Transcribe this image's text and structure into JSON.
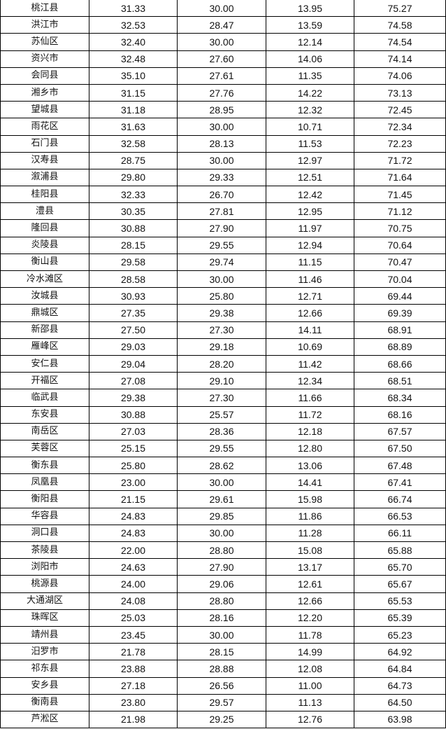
{
  "table": {
    "rows": [
      [
        "桃江县",
        "31.33",
        "30.00",
        "13.95",
        "75.27"
      ],
      [
        "洪江市",
        "32.53",
        "28.47",
        "13.59",
        "74.58"
      ],
      [
        "苏仙区",
        "32.40",
        "30.00",
        "12.14",
        "74.54"
      ],
      [
        "资兴市",
        "32.48",
        "27.60",
        "14.06",
        "74.14"
      ],
      [
        "会同县",
        "35.10",
        "27.61",
        "11.35",
        "74.06"
      ],
      [
        "湘乡市",
        "31.15",
        "27.76",
        "14.22",
        "73.13"
      ],
      [
        "望城县",
        "31.18",
        "28.95",
        "12.32",
        "72.45"
      ],
      [
        "雨花区",
        "31.63",
        "30.00",
        "10.71",
        "72.34"
      ],
      [
        "石门县",
        "32.58",
        "28.13",
        "11.53",
        "72.23"
      ],
      [
        "汉寿县",
        "28.75",
        "30.00",
        "12.97",
        "71.72"
      ],
      [
        "溆浦县",
        "29.80",
        "29.33",
        "12.51",
        "71.64"
      ],
      [
        "桂阳县",
        "32.33",
        "26.70",
        "12.42",
        "71.45"
      ],
      [
        "澧县",
        "30.35",
        "27.81",
        "12.95",
        "71.12"
      ],
      [
        "隆回县",
        "30.88",
        "27.90",
        "11.97",
        "70.75"
      ],
      [
        "炎陵县",
        "28.15",
        "29.55",
        "12.94",
        "70.64"
      ],
      [
        "衡山县",
        "29.58",
        "29.74",
        "11.15",
        "70.47"
      ],
      [
        "冷水滩区",
        "28.58",
        "30.00",
        "11.46",
        "70.04"
      ],
      [
        "汝城县",
        "30.93",
        "25.80",
        "12.71",
        "69.44"
      ],
      [
        "鼎城区",
        "27.35",
        "29.38",
        "12.66",
        "69.39"
      ],
      [
        "新邵县",
        "27.50",
        "27.30",
        "14.11",
        "68.91"
      ],
      [
        "雁峰区",
        "29.03",
        "29.18",
        "10.69",
        "68.89"
      ],
      [
        "安仁县",
        "29.04",
        "28.20",
        "11.42",
        "68.66"
      ],
      [
        "开福区",
        "27.08",
        "29.10",
        "12.34",
        "68.51"
      ],
      [
        "临武县",
        "29.38",
        "27.30",
        "11.66",
        "68.34"
      ],
      [
        "东安县",
        "30.88",
        "25.57",
        "11.72",
        "68.16"
      ],
      [
        "南岳区",
        "27.03",
        "28.36",
        "12.18",
        "67.57"
      ],
      [
        "芙蓉区",
        "25.15",
        "29.55",
        "12.80",
        "67.50"
      ],
      [
        "衡东县",
        "25.80",
        "28.62",
        "13.06",
        "67.48"
      ],
      [
        "凤凰县",
        "23.00",
        "30.00",
        "14.41",
        "67.41"
      ],
      [
        "衡阳县",
        "21.15",
        "29.61",
        "15.98",
        "66.74"
      ],
      [
        "华容县",
        "24.83",
        "29.85",
        "11.86",
        "66.53"
      ],
      [
        "洞口县",
        "24.83",
        "30.00",
        "11.28",
        "66.11"
      ],
      [
        "茶陵县",
        "22.00",
        "28.80",
        "15.08",
        "65.88"
      ],
      [
        "浏阳市",
        "24.63",
        "27.90",
        "13.17",
        "65.70"
      ],
      [
        "桃源县",
        "24.00",
        "29.06",
        "12.61",
        "65.67"
      ],
      [
        "大通湖区",
        "24.08",
        "28.80",
        "12.66",
        "65.53"
      ],
      [
        "珠晖区",
        "25.03",
        "28.16",
        "12.20",
        "65.39"
      ],
      [
        "靖州县",
        "23.45",
        "30.00",
        "11.78",
        "65.23"
      ],
      [
        "汨罗市",
        "21.78",
        "28.15",
        "14.99",
        "64.92"
      ],
      [
        "祁东县",
        "23.88",
        "28.88",
        "12.08",
        "64.84"
      ],
      [
        "安乡县",
        "27.18",
        "26.56",
        "11.00",
        "64.73"
      ],
      [
        "衡南县",
        "23.80",
        "29.57",
        "11.13",
        "64.50"
      ],
      [
        "芦淞区",
        "21.98",
        "29.25",
        "12.76",
        "63.98"
      ]
    ]
  }
}
